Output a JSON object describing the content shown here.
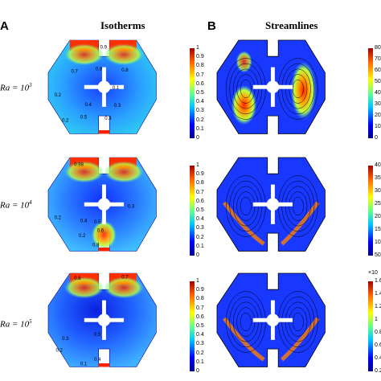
{
  "panels": {
    "a": {
      "letter": "A",
      "title": "Isotherms"
    },
    "b": {
      "letter": "B",
      "title": "Streamlines"
    }
  },
  "rows": [
    {
      "label": "Ra = 10",
      "exponent": "3",
      "iso_labels": [
        "0.7",
        "0.8",
        "0.9",
        "0.8",
        "0.2",
        "0.4",
        "0.1",
        "0.3",
        "0.5",
        "0.3",
        "0.2"
      ],
      "stream_ticks": [
        "80",
        "70",
        "60",
        "50",
        "40",
        "30",
        "20",
        "10",
        "0"
      ]
    },
    {
      "label": "Ra = 10",
      "exponent": "4",
      "iso_labels": [
        "0.98",
        "0.2",
        "0.4",
        "0.5",
        "0.6",
        "0.3",
        "0.2",
        "0.8"
      ],
      "stream_ticks": [
        "400",
        "350",
        "300",
        "250",
        "200",
        "150",
        "100",
        "50"
      ]
    },
    {
      "label": "Ra = 10",
      "exponent": "5",
      "iso_labels": [
        "0.6",
        "0.7",
        "0.3",
        "0.2",
        "0.4",
        "0.1",
        "0.5"
      ],
      "stream_ticks": [
        "1.6",
        "1.4",
        "1.2",
        "1",
        "0.8",
        "0.6",
        "0.4",
        "0.2"
      ],
      "stream_multiplier": "×10"
    }
  ],
  "isotherm_ticks": [
    "1",
    "0.9",
    "0.8",
    "0.7",
    "0.6",
    "0.5",
    "0.4",
    "0.3",
    "0.2",
    "0.1",
    "0"
  ],
  "colors": {
    "hot": "#d7191c",
    "warm": "#fdae61",
    "mid": "#a6d96a",
    "cool": "#2b83ba",
    "cold": "#0000b4"
  }
}
